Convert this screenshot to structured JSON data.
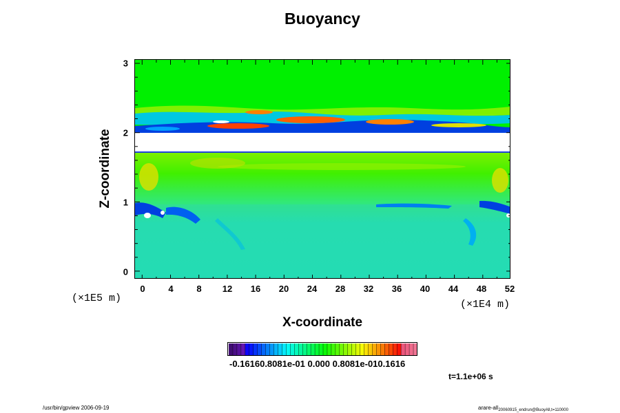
{
  "chart_data": {
    "type": "heatmap",
    "title": "Buoyancy",
    "xlabel": "X-coordinate",
    "ylabel": "Z-coordinate",
    "x_unit_label": "(×1E4 m)",
    "y_unit_label": "(×1E5 m)",
    "x_ticks": [
      "0",
      "4",
      "8",
      "12",
      "16",
      "20",
      "24",
      "28",
      "32",
      "36",
      "40",
      "44",
      "48",
      "52"
    ],
    "y_ticks": [
      "0",
      "1",
      "2",
      "3"
    ],
    "xlim": [
      -1,
      52
    ],
    "ylim": [
      -0.12,
      3.05
    ],
    "colorbar": {
      "labels_text": "-0.16160.8081e-01 0.000 0.8081e-010.1616",
      "range": [
        -0.1616,
        0.1616
      ]
    },
    "time_label": "t=1.1e+06 s",
    "colors": {
      "background_field": "#00f000",
      "lower_field": "#26dcb0",
      "gap": "#ffffff"
    }
  },
  "footer": {
    "left": "/usr/bin/gpview 2006-09-19",
    "right_main": "arare-all",
    "right_sub": "20060915_endrun@BuoyAll,t=110000"
  }
}
